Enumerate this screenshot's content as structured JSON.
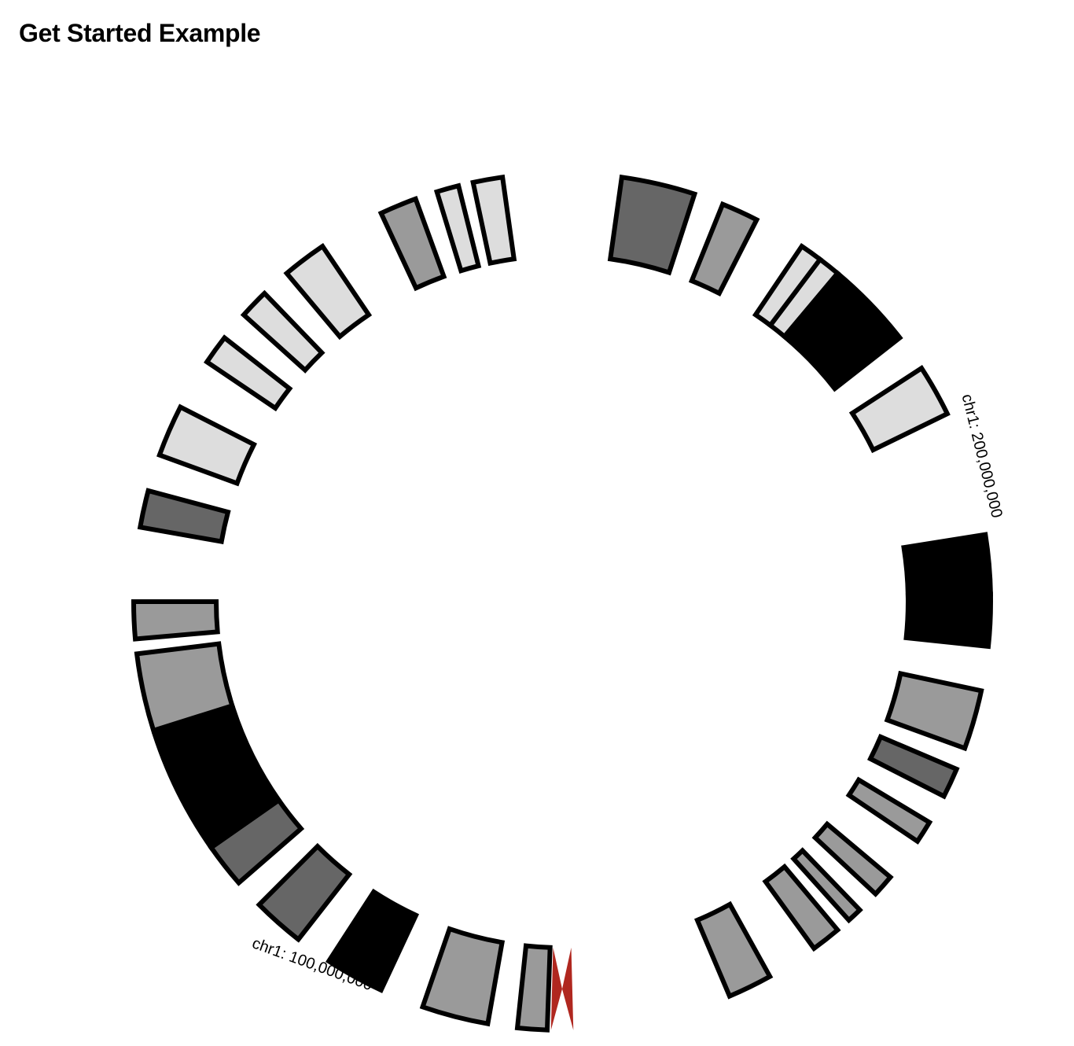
{
  "page": {
    "title": "Get Started Example"
  },
  "ideogram": {
    "chromosome": "chr1",
    "tick_labels": [
      "chr1: 100,000,000",
      "chr1: 200,000,000"
    ],
    "band_colors": {
      "gneg": "#dddddd",
      "gpos25": "#9a9a9a",
      "gpos50": "#666666",
      "gpos100": "#000000",
      "acen": "#b0271f"
    }
  }
}
